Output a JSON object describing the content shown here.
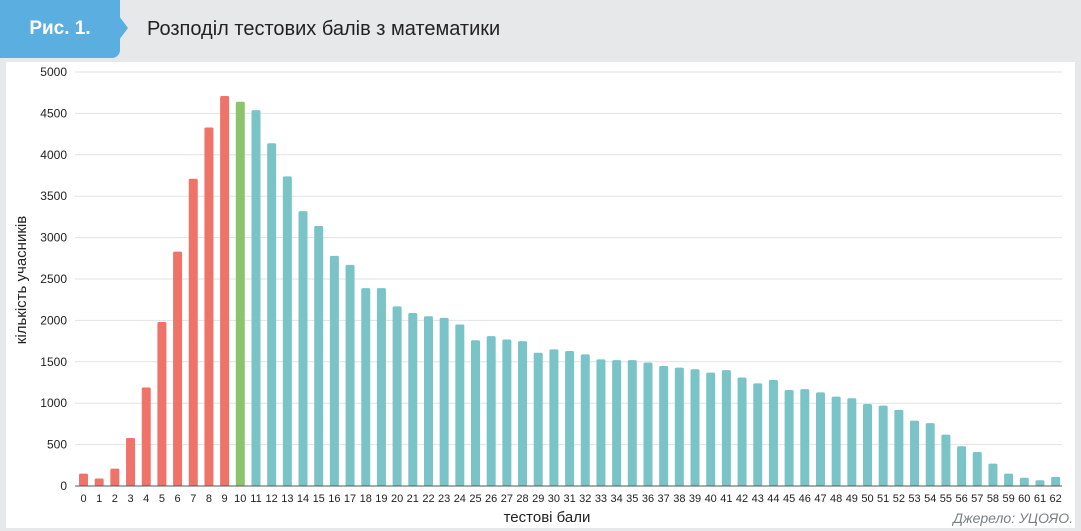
{
  "header": {
    "badge": "Рис. 1.",
    "title": "Розподіл тестових балів з математики"
  },
  "source": "Джерело: УЦОЯО.",
  "colors": {
    "red": "#ef7369",
    "green": "#8cc46e",
    "teal": "#7ac4c8",
    "badge": "#5aaee0"
  },
  "chart_data": {
    "type": "bar",
    "xlabel": "тестові бали",
    "ylabel": "кількість учасників",
    "ylim": [
      0,
      5000
    ],
    "yticks": [
      0,
      500,
      1000,
      1500,
      2000,
      2500,
      3000,
      3500,
      4000,
      4500,
      5000
    ],
    "grid": true,
    "categories": [
      "0",
      "1",
      "2",
      "3",
      "4",
      "5",
      "6",
      "7",
      "8",
      "9",
      "10",
      "11",
      "12",
      "13",
      "14",
      "15",
      "16",
      "17",
      "18",
      "19",
      "20",
      "21",
      "22",
      "23",
      "24",
      "25",
      "26",
      "27",
      "28",
      "29",
      "30",
      "31",
      "32",
      "33",
      "34",
      "35",
      "36",
      "37",
      "38",
      "39",
      "40",
      "41",
      "42",
      "43",
      "44",
      "45",
      "46",
      "47",
      "48",
      "49",
      "50",
      "51",
      "52",
      "53",
      "54",
      "55",
      "56",
      "57",
      "58",
      "59",
      "60",
      "61",
      "62"
    ],
    "values": [
      150,
      90,
      210,
      580,
      1190,
      1980,
      2830,
      3710,
      4330,
      4710,
      4640,
      4540,
      4140,
      3740,
      3320,
      3140,
      2780,
      2670,
      2390,
      2390,
      2170,
      2090,
      2050,
      2030,
      1950,
      1760,
      1810,
      1770,
      1750,
      1610,
      1650,
      1630,
      1590,
      1530,
      1520,
      1520,
      1490,
      1450,
      1430,
      1410,
      1370,
      1400,
      1310,
      1240,
      1280,
      1160,
      1170,
      1130,
      1080,
      1060,
      990,
      970,
      920,
      790,
      760,
      620,
      480,
      410,
      270,
      150,
      100,
      70,
      110
    ],
    "bar_colors": [
      "red",
      "red",
      "red",
      "red",
      "red",
      "red",
      "red",
      "red",
      "red",
      "red",
      "green",
      "teal",
      "teal",
      "teal",
      "teal",
      "teal",
      "teal",
      "teal",
      "teal",
      "teal",
      "teal",
      "teal",
      "teal",
      "teal",
      "teal",
      "teal",
      "teal",
      "teal",
      "teal",
      "teal",
      "teal",
      "teal",
      "teal",
      "teal",
      "teal",
      "teal",
      "teal",
      "teal",
      "teal",
      "teal",
      "teal",
      "teal",
      "teal",
      "teal",
      "teal",
      "teal",
      "teal",
      "teal",
      "teal",
      "teal",
      "teal",
      "teal",
      "teal",
      "teal",
      "teal",
      "teal",
      "teal",
      "teal",
      "teal",
      "teal",
      "teal",
      "teal",
      "teal"
    ]
  }
}
